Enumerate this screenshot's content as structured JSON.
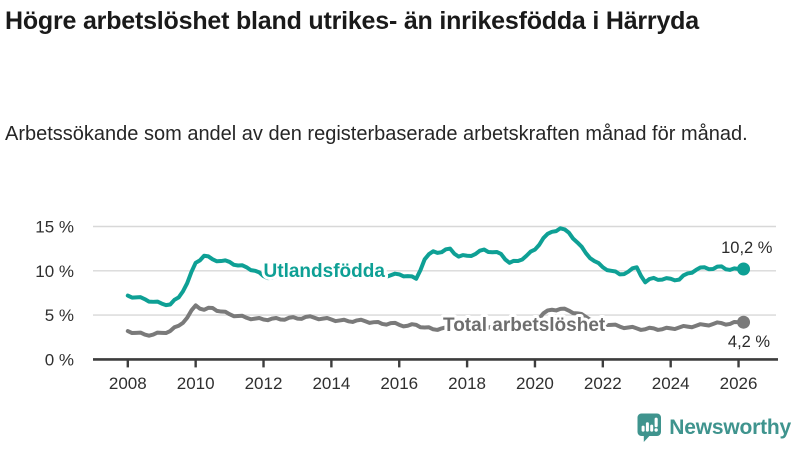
{
  "header": {
    "title": "Högre arbetslöshet bland utrikes- än inrikesfödda i Härryda",
    "subtitle": "Arbetssökande som andel av den registerbaserade arbetskraften månad för månad."
  },
  "footer": {
    "brand": "Newsworthy"
  },
  "colors": {
    "accent_teal": "#0ea095",
    "series_gray": "#7a7a7a",
    "grid": "#d8d8d8",
    "axis": "#3d3d3d",
    "tick_text": "#2f2f2f",
    "value_text": "#2b2b2b",
    "label_gray": "#6e6e6e",
    "logo_teal": "#3f948e"
  },
  "chart_data": {
    "type": "line",
    "title": "Högre arbetslöshet bland utrikes- än inrikesfödda i Härryda",
    "xlabel": "",
    "ylabel": "Arbetssökande som andel av den registerbaserade arbetskraften (%)",
    "x_unit": "decimal years (monthly series shown, read at quarterly resolution)",
    "xlim": [
      2008,
      2026
    ],
    "ylim": [
      0,
      15.5
    ],
    "grid": "horizontal",
    "legend_position": "inline-labels",
    "x": [
      2008,
      2008.25,
      2008.5,
      2008.75,
      2009,
      2009.25,
      2009.5,
      2009.75,
      2010,
      2010.25,
      2010.5,
      2010.75,
      2011,
      2011.25,
      2011.5,
      2011.75,
      2012,
      2012.25,
      2012.5,
      2012.75,
      2013,
      2013.25,
      2013.5,
      2013.75,
      2014,
      2014.25,
      2014.5,
      2014.75,
      2015,
      2015.25,
      2015.5,
      2015.75,
      2016,
      2016.25,
      2016.5,
      2016.75,
      2017,
      2017.25,
      2017.5,
      2017.75,
      2018,
      2018.25,
      2018.5,
      2018.75,
      2019,
      2019.25,
      2019.5,
      2019.75,
      2020,
      2020.25,
      2020.5,
      2020.75,
      2021,
      2021.25,
      2021.5,
      2021.75,
      2022,
      2022.25,
      2022.5,
      2022.75,
      2023,
      2023.25,
      2023.5,
      2023.75,
      2024,
      2024.25,
      2024.5,
      2024.75,
      2025,
      2025.25,
      2025.5,
      2025.75,
      2026
    ],
    "series": [
      {
        "name": "Utlandsfödda",
        "color_key": "accent_teal",
        "end_label": "10,2 %",
        "end_value": 10.2,
        "values": [
          7.2,
          7.0,
          6.8,
          6.5,
          6.3,
          6.2,
          7.0,
          8.6,
          10.9,
          11.7,
          11.3,
          11.1,
          11.0,
          10.6,
          10.4,
          10.0,
          9.4,
          9.2,
          9.4,
          9.6,
          9.7,
          9.6,
          9.5,
          9.6,
          9.6,
          9.5,
          9.4,
          9.5,
          9.5,
          9.4,
          9.4,
          9.5,
          9.6,
          9.4,
          9.1,
          11.3,
          12.2,
          12.1,
          12.5,
          11.6,
          11.7,
          11.9,
          12.4,
          12.1,
          11.9,
          10.9,
          11.1,
          11.7,
          12.4,
          13.7,
          14.4,
          14.8,
          14.3,
          13.2,
          12.0,
          11.1,
          10.4,
          10.0,
          9.6,
          9.9,
          10.4,
          8.7,
          9.2,
          9.0,
          9.1,
          9.0,
          9.7,
          10.1,
          10.4,
          10.2,
          10.5,
          10.1,
          10.2
        ]
      },
      {
        "name": "Total arbetslöshet",
        "color_key": "series_gray",
        "end_label": "4,2 %",
        "end_value": 4.2,
        "values": [
          3.2,
          3.0,
          2.8,
          2.8,
          3.0,
          3.2,
          3.8,
          4.7,
          6.1,
          5.6,
          5.8,
          5.4,
          5.1,
          4.9,
          4.7,
          4.6,
          4.5,
          4.6,
          4.5,
          4.7,
          4.6,
          4.8,
          4.7,
          4.6,
          4.5,
          4.4,
          4.3,
          4.4,
          4.3,
          4.2,
          4.0,
          4.1,
          3.9,
          3.8,
          3.9,
          3.6,
          3.4,
          3.5,
          3.5,
          3.6,
          3.6,
          3.6,
          3.7,
          3.7,
          3.8,
          3.8,
          3.9,
          4.0,
          4.3,
          5.2,
          5.6,
          5.7,
          5.5,
          5.2,
          4.8,
          4.4,
          4.1,
          3.9,
          3.7,
          3.6,
          3.5,
          3.4,
          3.5,
          3.4,
          3.5,
          3.6,
          3.7,
          3.8,
          3.9,
          4.0,
          4.1,
          4.0,
          4.2
        ]
      }
    ],
    "yticks": [
      {
        "value": 0,
        "label": "0 %"
      },
      {
        "value": 5,
        "label": "5 %"
      },
      {
        "value": 10,
        "label": "10 %"
      },
      {
        "value": 15,
        "label": "15 %"
      }
    ],
    "xticks": [
      2008,
      2010,
      2012,
      2014,
      2016,
      2018,
      2020,
      2022,
      2024,
      2026
    ],
    "series_labels": [
      {
        "text": "Utlandsfödda",
        "x": 2012.0,
        "y": 9.3,
        "color_key": "accent_teal"
      },
      {
        "text": "Total arbetslöshet",
        "x": 2017.29,
        "y": 3.2,
        "color_key": "label_gray"
      }
    ],
    "end_value_labels": [
      {
        "text": "10,2 %",
        "x": 2027.0,
        "y": 12.0
      },
      {
        "text": "4,2 %",
        "x": 2026.93,
        "y": 1.4
      }
    ]
  }
}
